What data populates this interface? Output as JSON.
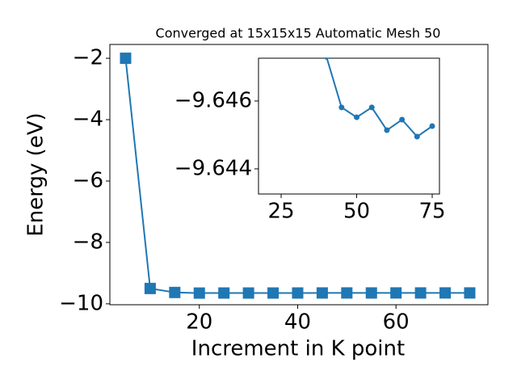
{
  "chart_data": [
    {
      "type": "line",
      "title": "Converged at 15x15x15 Automatic Mesh 50",
      "xlabel": "Increment in K point",
      "ylabel": "Energy (eV)",
      "x": [
        5,
        10,
        15,
        20,
        25,
        30,
        35,
        40,
        45,
        50,
        55,
        60,
        65,
        70,
        75
      ],
      "series": [
        {
          "color": "#1f77b4",
          "marker": "square",
          "values": [
            -2,
            -9.5,
            -9.63,
            -9.65,
            -9.648,
            -9.648,
            -9.648,
            -9.6473,
            -9.64581,
            -9.64552,
            -9.64581,
            -9.64514,
            -9.64545,
            -9.64495,
            -9.64526
          ]
        }
      ],
      "xlim": [
        1.8,
        78.7
      ],
      "xticks": [
        20,
        40,
        60
      ],
      "ylim": [
        -10.03,
        -1.55
      ],
      "yticks": [
        {
          "value": -10,
          "label": "−10"
        },
        {
          "value": -8,
          "label": "−8"
        },
        {
          "value": -6,
          "label": "−6"
        },
        {
          "value": -4,
          "label": "−4"
        },
        {
          "value": -2,
          "label": "−2"
        }
      ]
    },
    {
      "type": "line",
      "x": [
        40,
        45,
        50,
        55,
        60,
        65,
        70,
        75
      ],
      "series": [
        {
          "color": "#1f77b4",
          "marker": "circle",
          "values": [
            -9.6473,
            -9.64581,
            -9.64552,
            -9.64581,
            -9.64514,
            -9.64545,
            -9.64495,
            -9.64526
          ]
        }
      ],
      "xlim": [
        17.5,
        77.4
      ],
      "xticks": [
        25,
        50,
        75
      ],
      "ylim": [
        -9.64326,
        -9.64726
      ],
      "yticks": [
        {
          "value": -9.644,
          "label": "−9.644"
        },
        {
          "value": -9.646,
          "label": "−9.646"
        }
      ]
    }
  ]
}
